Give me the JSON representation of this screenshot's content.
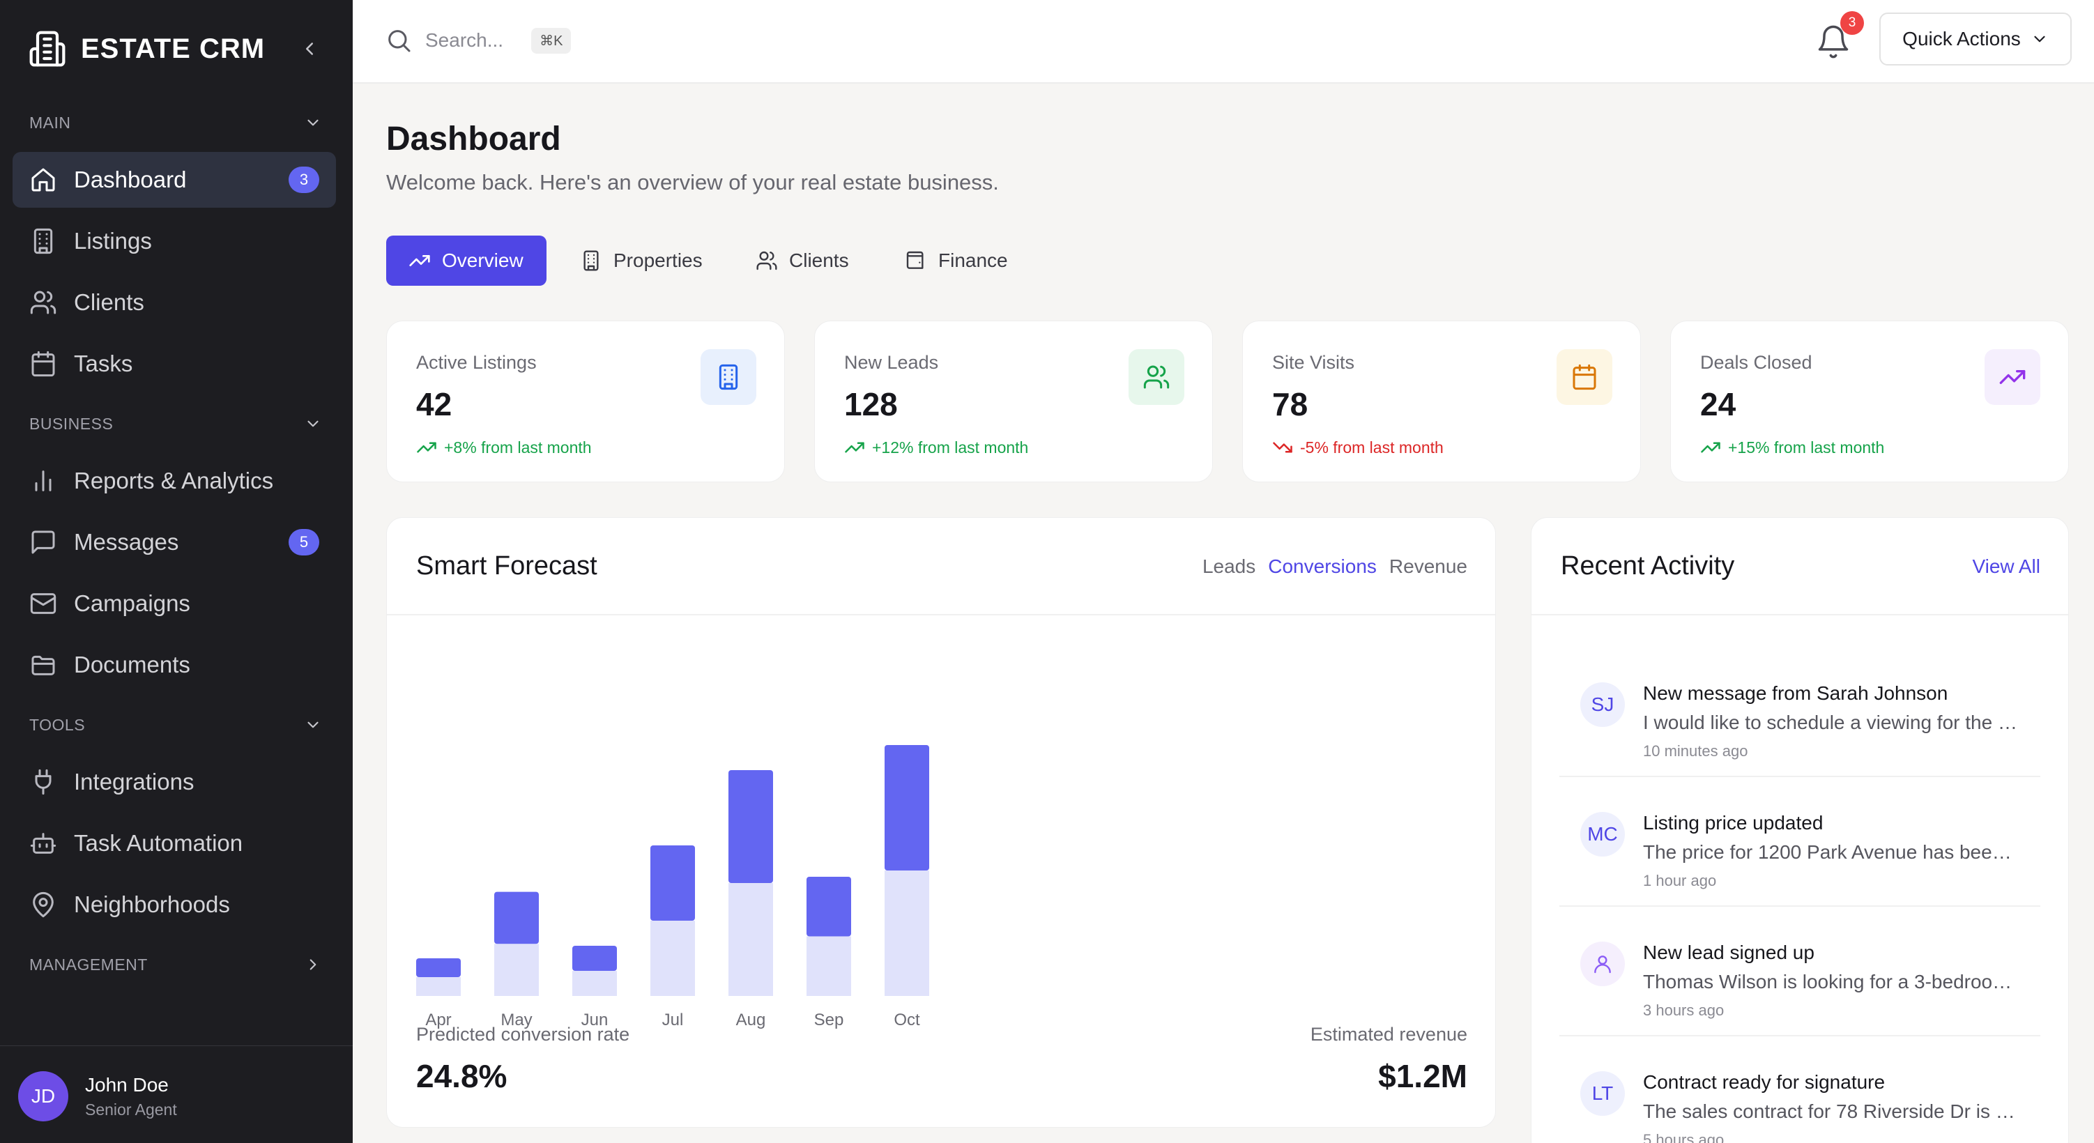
{
  "app": {
    "name": "ESTATE CRM"
  },
  "sidebar": {
    "sections": [
      {
        "label": "MAIN"
      },
      {
        "label": "BUSINESS"
      },
      {
        "label": "TOOLS"
      },
      {
        "label": "MANAGEMENT"
      }
    ],
    "items": [
      {
        "label": "Dashboard",
        "icon": "home-icon",
        "badge": "3"
      },
      {
        "label": "Listings",
        "icon": "building-icon"
      },
      {
        "label": "Clients",
        "icon": "users-icon"
      },
      {
        "label": "Tasks",
        "icon": "calendar-icon"
      },
      {
        "label": "Reports & Analytics",
        "icon": "bar-chart-icon"
      },
      {
        "label": "Messages",
        "icon": "message-icon",
        "badge": "5"
      },
      {
        "label": "Campaigns",
        "icon": "mail-icon"
      },
      {
        "label": "Documents",
        "icon": "folder-icon"
      },
      {
        "label": "Integrations",
        "icon": "plug-icon"
      },
      {
        "label": "Task Automation",
        "icon": "bot-icon"
      },
      {
        "label": "Neighborhoods",
        "icon": "map-pin-icon"
      }
    ],
    "user": {
      "initials": "JD",
      "name": "John Doe",
      "role": "Senior Agent"
    }
  },
  "topbar": {
    "search_placeholder": "Search...",
    "shortcut": "⌘K",
    "notification_count": "3",
    "quick_actions_label": "Quick Actions"
  },
  "page": {
    "title": "Dashboard",
    "subtitle": "Welcome back. Here's an overview of your real estate business."
  },
  "tabs": [
    {
      "label": "Overview",
      "active": true
    },
    {
      "label": "Properties"
    },
    {
      "label": "Clients"
    },
    {
      "label": "Finance"
    }
  ],
  "stats": [
    {
      "label": "Active Listings",
      "value": "42",
      "change": "+8% from last month",
      "trend": "up",
      "icon": "building-icon",
      "icon_bg": "#e8f0fd",
      "icon_color": "#2563eb"
    },
    {
      "label": "New Leads",
      "value": "128",
      "change": "+12% from last month",
      "trend": "up",
      "icon": "users-icon",
      "icon_bg": "#e7f7ec",
      "icon_color": "#16a34a"
    },
    {
      "label": "Site Visits",
      "value": "78",
      "change": "-5% from last month",
      "trend": "down",
      "icon": "calendar-icon",
      "icon_bg": "#fdf6e3",
      "icon_color": "#d97706"
    },
    {
      "label": "Deals Closed",
      "value": "24",
      "change": "+15% from last month",
      "trend": "up",
      "icon": "trending-up-icon",
      "icon_bg": "#f5effd",
      "icon_color": "#9333ea"
    }
  ],
  "forecast": {
    "title": "Smart Forecast",
    "tabs": [
      "Leads",
      "Conversions",
      "Revenue"
    ],
    "active_tab": "Conversions",
    "conversion_label": "Predicted conversion rate",
    "conversion_value": "24.8%",
    "revenue_label": "Estimated revenue",
    "revenue_value": "$1.2M"
  },
  "activity": {
    "title": "Recent Activity",
    "view_all": "View All",
    "items": [
      {
        "avatar": "SJ",
        "title": "New message from Sarah Johnson",
        "text": "I would like to schedule a viewing for the a...",
        "time": "10 minutes ago"
      },
      {
        "avatar": "MC",
        "title": "Listing price updated",
        "text": "The price for 1200 Park Avenue has been r...",
        "time": "1 hour ago"
      },
      {
        "avatar": "",
        "title": "New lead signed up",
        "text": "Thomas Wilson is looking for a 3-bedroom ...",
        "time": "3 hours ago"
      },
      {
        "avatar": "LT",
        "title": "Contract ready for signature",
        "text": "The sales contract for 78 Riverside Dr is re...",
        "time": "5 hours ago"
      }
    ]
  },
  "chart_data": {
    "type": "bar",
    "categories": [
      "Apr",
      "May",
      "Jun",
      "Jul",
      "Aug",
      "Sep",
      "Oct"
    ],
    "series": [
      {
        "values": [
          30,
          83,
          40,
          120,
          180,
          95,
          200
        ],
        "color": "#6366f1"
      },
      {
        "values": [
          30,
          83,
          40,
          120,
          180,
          95,
          200
        ],
        "color": "#e0e2fb"
      }
    ],
    "stacked": true,
    "grid": false,
    "colors": {
      "primary": "#6366f1",
      "light": "#e0e2fb"
    }
  }
}
